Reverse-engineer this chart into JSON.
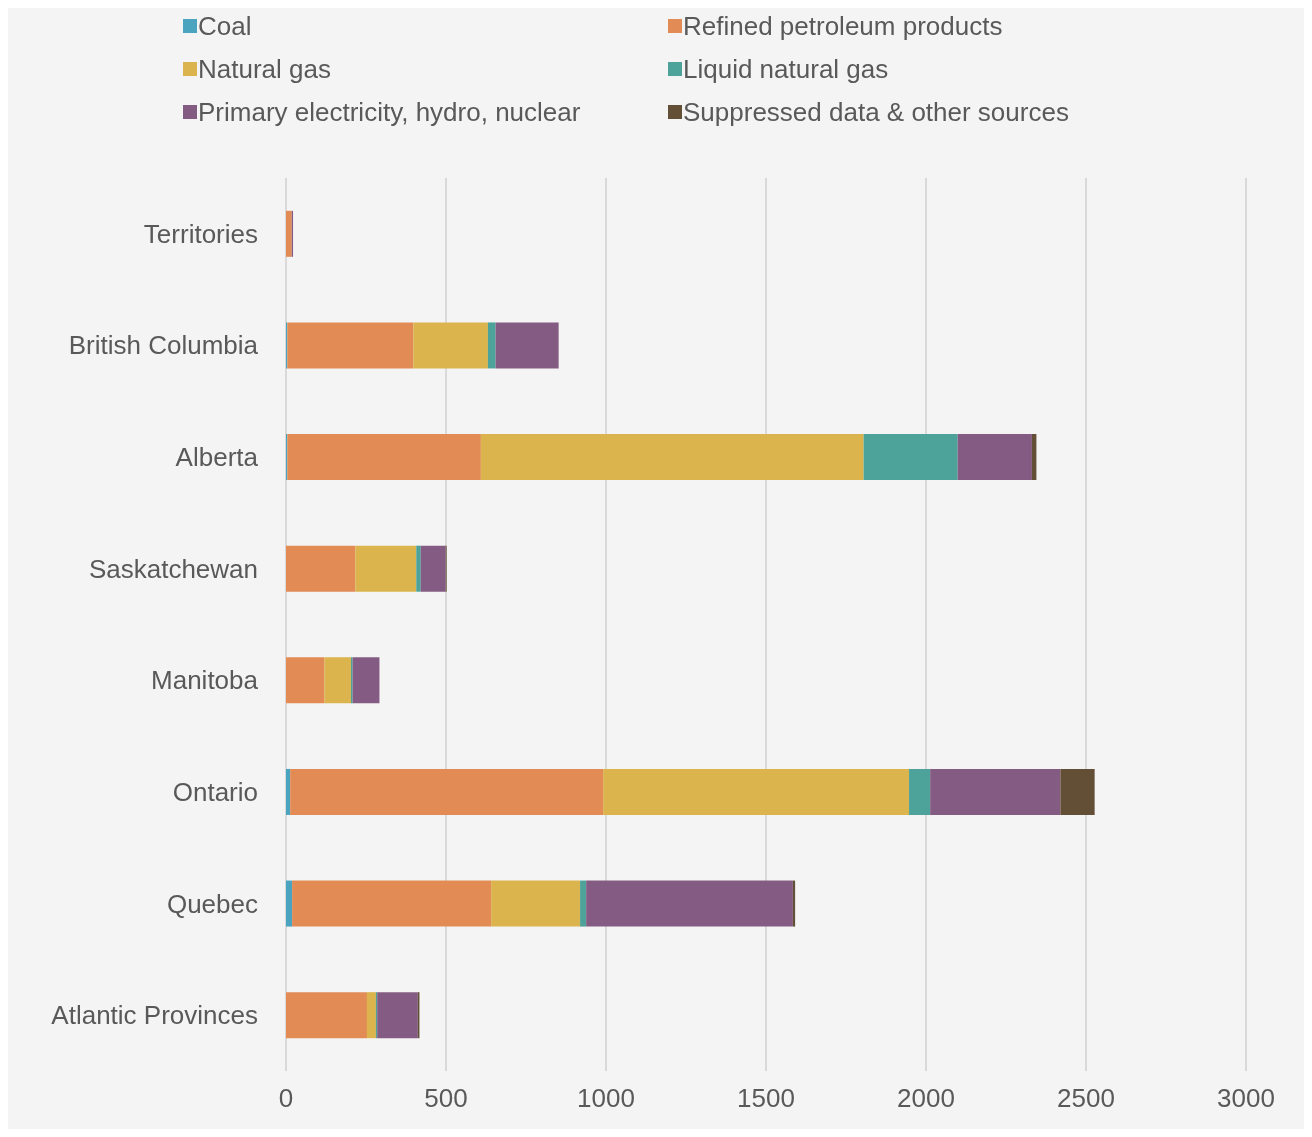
{
  "chart_data": {
    "type": "bar",
    "orientation": "horizontal",
    "stacked": true,
    "categories": [
      "Territories",
      "British Columbia",
      "Alberta",
      "Saskatchewan",
      "Manitoba",
      "Ontario",
      "Quebec",
      "Atlantic Provinces"
    ],
    "series": [
      {
        "name": "Coal",
        "color": "#4aa3bf",
        "values": [
          0,
          4,
          4,
          0,
          0,
          13,
          19,
          0
        ]
      },
      {
        "name": "Refined petroleum products",
        "color": "#e28b55",
        "values": [
          18,
          394,
          605,
          217,
          120,
          978,
          622,
          253
        ]
      },
      {
        "name": "Natural gas",
        "color": "#dcb44e",
        "values": [
          0,
          233,
          1196,
          190,
          83,
          956,
          278,
          28
        ]
      },
      {
        "name": "Liquid natural gas",
        "color": "#4da39a",
        "values": [
          0,
          24,
          294,
          14,
          5,
          66,
          19,
          4
        ]
      },
      {
        "name": "Primary electricity, hydro, nuclear",
        "color": "#845b82",
        "values": [
          4,
          197,
          232,
          78,
          84,
          407,
          646,
          127
        ]
      },
      {
        "name": "Suppressed data & other sources",
        "color": "#624f36",
        "values": [
          null,
          0,
          14,
          3,
          0,
          107,
          7,
          5
        ]
      }
    ],
    "xlim": [
      0,
      3000
    ],
    "xticks": [
      0,
      500,
      1000,
      1500,
      2000,
      2500,
      3000
    ],
    "grid": "x",
    "legend": "top"
  }
}
